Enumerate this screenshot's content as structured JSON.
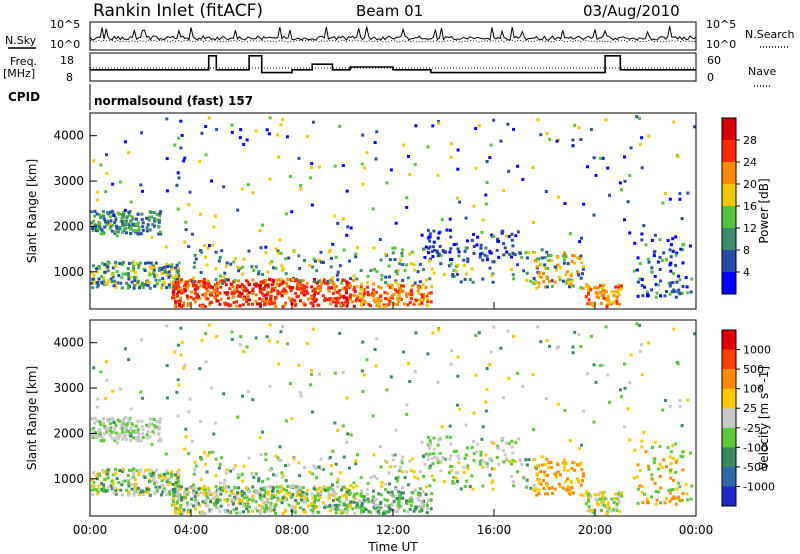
{
  "header": {
    "station": "Rankin Inlet (fitACF)",
    "beam": "Beam 01",
    "date": "03/Aug/2010"
  },
  "top_panels": {
    "nsky_label": "N.Sky",
    "nsky_ticks": [
      "10^5",
      "10^0"
    ],
    "nsearch_label": "N.Search",
    "nsearch_ticks": [
      "10^5",
      "10^0"
    ],
    "freq_label": "Freq.",
    "freq_unit": "[MHz]",
    "freq_ticks": [
      "18",
      "8"
    ],
    "nave_label": "Nave",
    "nave_ticks": [
      "60",
      "0"
    ],
    "cpid_label": "CPID",
    "cpid_text": "normalsound (fast) 157"
  },
  "chart_data": [
    {
      "type": "line",
      "panel": "frequency",
      "ylim": [
        8,
        18
      ],
      "x_hours": [
        0,
        4.7,
        4.7,
        5.0,
        5.0,
        6.3,
        6.3,
        6.8,
        6.8,
        8.0,
        8.0,
        8.8,
        8.8,
        9.6,
        9.6,
        10.3,
        10.3,
        12.0,
        12.0,
        13.5,
        13.5,
        20.4,
        20.4,
        21.0,
        21.0,
        24.0
      ],
      "y_mhz": [
        12,
        12,
        17,
        17,
        12,
        12,
        17,
        17,
        11,
        11,
        12,
        12,
        14,
        14,
        12,
        12,
        13,
        13,
        12,
        12,
        11,
        11,
        17,
        17,
        12,
        12
      ]
    },
    {
      "type": "heatmap",
      "panel": "power",
      "title": "",
      "xlabel": "Time UT",
      "ylabel": "Slant Range [km]",
      "x_ticks": [
        "00:00",
        "04:00",
        "08:00",
        "12:00",
        "16:00",
        "20:00",
        "00:00"
      ],
      "y_ticks": [
        "1000",
        "2000",
        "3000",
        "4000"
      ],
      "ylim": [
        180,
        4500
      ],
      "colorbar_label": "Power [dB]",
      "colorbar_ticks": [
        "4",
        "8",
        "12",
        "16",
        "20",
        "24",
        "28"
      ],
      "colorbar_colors": [
        "#0000ff",
        "#2a4aa8",
        "#3d8c6e",
        "#55c23c",
        "#f0c800",
        "#ff8c00",
        "#ff2a00",
        "#d80000"
      ]
    },
    {
      "type": "heatmap",
      "panel": "velocity",
      "title": "",
      "xlabel": "Time UT",
      "ylabel": "Slant Range [km]",
      "x_ticks": [
        "00:00",
        "04:00",
        "08:00",
        "12:00",
        "16:00",
        "20:00",
        "00:00"
      ],
      "y_ticks": [
        "1000",
        "2000",
        "3000",
        "4000"
      ],
      "ylim": [
        180,
        4500
      ],
      "colorbar_label": "Velocity [m s^-1]",
      "colorbar_ticks": [
        "1000",
        "500",
        "100",
        "25",
        "-25",
        "-100",
        "-500",
        "-1000"
      ],
      "colorbar_colors": [
        "#1e28c8",
        "#2e6aa8",
        "#3a8c60",
        "#5cc83a",
        "#c8c8c8",
        "#ffc800",
        "#ff8c00",
        "#ff4000",
        "#e00000"
      ]
    }
  ]
}
